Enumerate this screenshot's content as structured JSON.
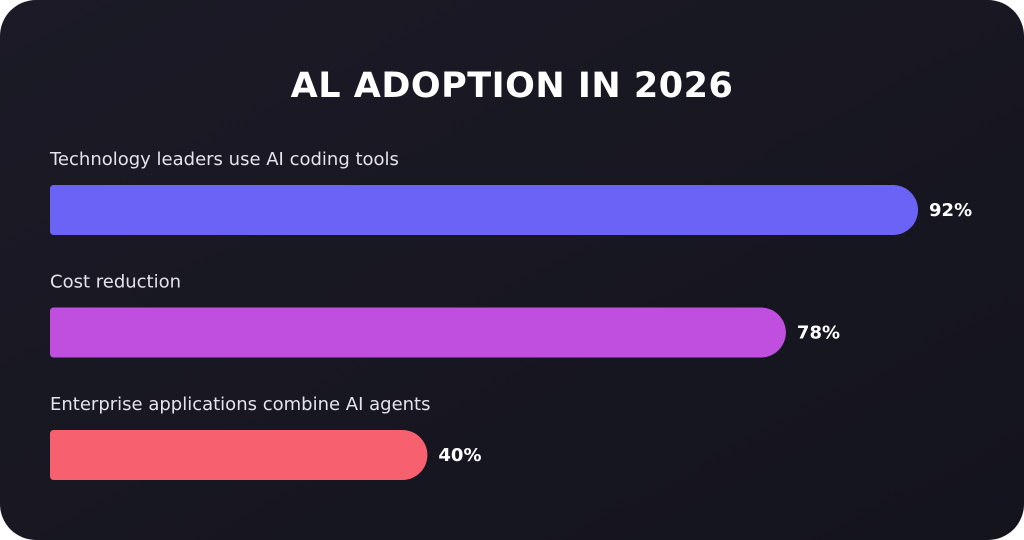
{
  "chart_data": {
    "type": "bar",
    "orientation": "horizontal",
    "title": "AL ADOPTION IN 2026",
    "categories": [
      "Technology leaders use AI coding tools",
      "Cost reduction",
      "Enterprise applications combine AI agents"
    ],
    "values": [
      92,
      78,
      40
    ],
    "value_labels": [
      "92%",
      "78%",
      "40%"
    ],
    "colors": [
      "#6b63f6",
      "#c04fe0",
      "#f7606e"
    ],
    "xlim": [
      0,
      100
    ]
  }
}
